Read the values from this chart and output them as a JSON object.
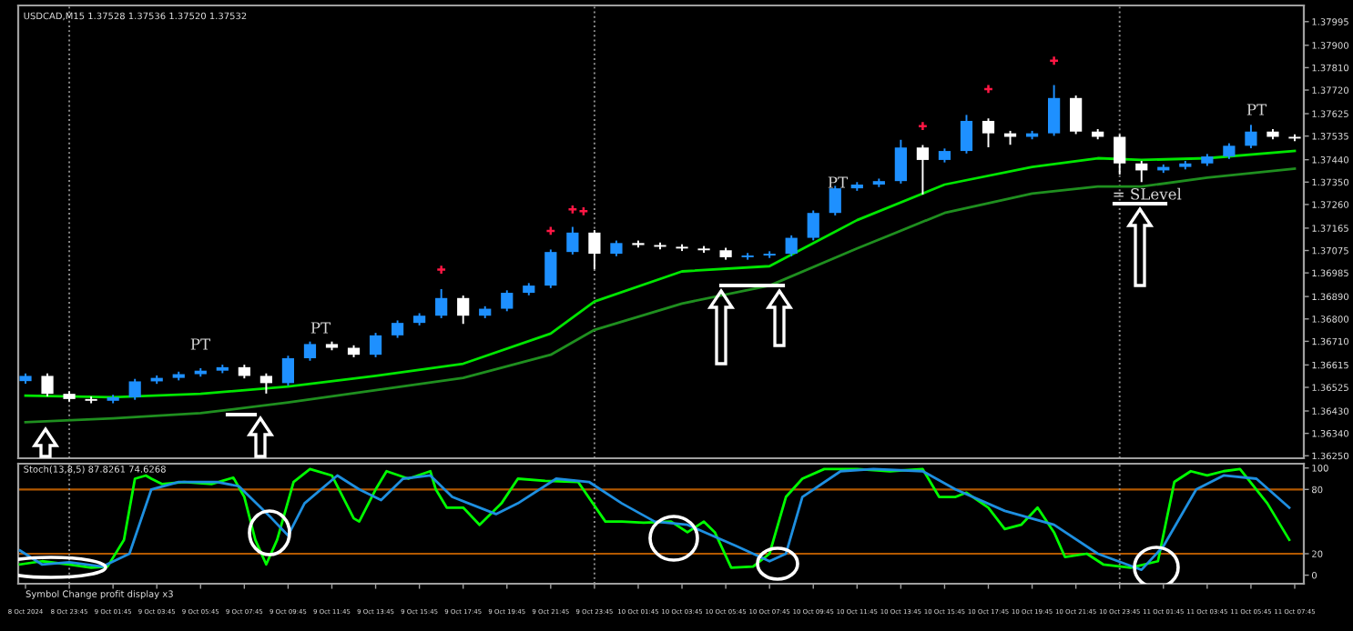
{
  "chart_data": [
    {
      "type": "candlestick",
      "title": "USDCAD,M15 1.37528 1.37536 1.37520 1.37532",
      "tick_labels": "y",
      "x": [
        "2024-10-08T21:45",
        "2024-10-08T22:45",
        "2024-10-08T23:45",
        "2024-10-09T00:45",
        "2024-10-09T01:45",
        "2024-10-09T02:45",
        "2024-10-09T03:45",
        "2024-10-09T04:45",
        "2024-10-09T05:45",
        "2024-10-09T06:45",
        "2024-10-09T07:45",
        "2024-10-09T08:45",
        "2024-10-09T09:45",
        "2024-10-09T10:45",
        "2024-10-09T11:45",
        "2024-10-09T12:45",
        "2024-10-09T13:45",
        "2024-10-09T14:45",
        "2024-10-09T15:45",
        "2024-10-09T16:45",
        "2024-10-09T17:45",
        "2024-10-09T18:45",
        "2024-10-09T19:45",
        "2024-10-09T20:45",
        "2024-10-09T21:45",
        "2024-10-09T22:45",
        "2024-10-09T23:45",
        "2024-10-10T00:45",
        "2024-10-10T01:45",
        "2024-10-10T02:45",
        "2024-10-10T03:45",
        "2024-10-10T04:45",
        "2024-10-10T05:45",
        "2024-10-10T06:45",
        "2024-10-10T07:45",
        "2024-10-10T08:45",
        "2024-10-10T09:45",
        "2024-10-10T10:45",
        "2024-10-10T11:45",
        "2024-10-10T12:45",
        "2024-10-10T13:45",
        "2024-10-10T14:45",
        "2024-10-10T15:45",
        "2024-10-10T16:45",
        "2024-10-10T17:45",
        "2024-10-10T18:45",
        "2024-10-10T19:45",
        "2024-10-10T20:45",
        "2024-10-10T21:45",
        "2024-10-10T22:45",
        "2024-10-10T23:45",
        "2024-10-11T00:45",
        "2024-10-11T01:45",
        "2024-10-11T02:45",
        "2024-10-11T03:45",
        "2024-10-11T04:45",
        "2024-10-11T05:45",
        "2024-10-11T06:45",
        "2024-10-11T07:45"
      ],
      "ohlc": [
        [
          1.3655,
          1.36581,
          1.3654,
          1.36571
        ],
        [
          1.36571,
          1.36581,
          1.36489,
          1.36499
        ],
        [
          1.36499,
          1.36509,
          1.36468,
          1.36478
        ],
        [
          1.36478,
          1.36488,
          1.36461,
          1.36471
        ],
        [
          1.36471,
          1.36495,
          1.36461,
          1.36485
        ],
        [
          1.36485,
          1.36559,
          1.36475,
          1.36549
        ],
        [
          1.36549,
          1.36573,
          1.36539,
          1.36563
        ],
        [
          1.36563,
          1.36588,
          1.36553,
          1.36578
        ],
        [
          1.36578,
          1.36602,
          1.36568,
          1.36592
        ],
        [
          1.36592,
          1.36616,
          1.36582,
          1.36606
        ],
        [
          1.36606,
          1.36616,
          1.36561,
          1.36571
        ],
        [
          1.36571,
          1.36581,
          1.365,
          1.36542
        ],
        [
          1.36542,
          1.36652,
          1.36532,
          1.36642
        ],
        [
          1.36642,
          1.36709,
          1.36632,
          1.36699
        ],
        [
          1.36699,
          1.36709,
          1.36674,
          1.36684
        ],
        [
          1.36684,
          1.36694,
          1.36646,
          1.36656
        ],
        [
          1.36656,
          1.36744,
          1.36646,
          1.36734
        ],
        [
          1.36734,
          1.36794,
          1.36724,
          1.36784
        ],
        [
          1.36784,
          1.36823,
          1.36774,
          1.36813
        ],
        [
          1.36813,
          1.3692,
          1.36803,
          1.36884
        ],
        [
          1.36884,
          1.36894,
          1.3678,
          1.36813
        ],
        [
          1.36813,
          1.36851,
          1.36803,
          1.36841
        ],
        [
          1.36841,
          1.36915,
          1.36831,
          1.36905
        ],
        [
          1.36905,
          1.36944,
          1.36895,
          1.36934
        ],
        [
          1.36934,
          1.37079,
          1.36924,
          1.37069
        ],
        [
          1.37069,
          1.3717,
          1.37059,
          1.37147
        ],
        [
          1.37147,
          1.37157,
          1.37,
          1.37062
        ],
        [
          1.37062,
          1.37115,
          1.37052,
          1.37105
        ],
        [
          1.37105,
          1.37115,
          1.37087,
          1.37097
        ],
        [
          1.37097,
          1.37107,
          1.3708,
          1.3709
        ],
        [
          1.3709,
          1.371,
          1.37073,
          1.37083
        ],
        [
          1.37083,
          1.37093,
          1.37066,
          1.37076
        ],
        [
          1.37076,
          1.37086,
          1.37038,
          1.37048
        ],
        [
          1.37048,
          1.37065,
          1.37038,
          1.37055
        ],
        [
          1.37055,
          1.37072,
          1.37045,
          1.37062
        ],
        [
          1.37062,
          1.37136,
          1.37052,
          1.37126
        ],
        [
          1.37126,
          1.37236,
          1.37116,
          1.37226
        ],
        [
          1.37226,
          1.37335,
          1.37216,
          1.37325
        ],
        [
          1.37325,
          1.3735,
          1.37315,
          1.3734
        ],
        [
          1.3734,
          1.37364,
          1.3733,
          1.37354
        ],
        [
          1.37354,
          1.3752,
          1.37344,
          1.37489
        ],
        [
          1.37489,
          1.37499,
          1.373,
          1.37439
        ],
        [
          1.37439,
          1.37485,
          1.37429,
          1.37475
        ],
        [
          1.37475,
          1.3762,
          1.37465,
          1.37596
        ],
        [
          1.37596,
          1.37606,
          1.3749,
          1.37546
        ],
        [
          1.37546,
          1.37556,
          1.375,
          1.37532
        ],
        [
          1.37532,
          1.37556,
          1.37522,
          1.37546
        ],
        [
          1.37546,
          1.3774,
          1.37536,
          1.37688
        ],
        [
          1.37688,
          1.37698,
          1.37543,
          1.37553
        ],
        [
          1.37553,
          1.37563,
          1.37522,
          1.37532
        ],
        [
          1.37532,
          1.37542,
          1.3738,
          1.37425
        ],
        [
          1.37425,
          1.37435,
          1.3735,
          1.37397
        ],
        [
          1.37397,
          1.37421,
          1.37387,
          1.37411
        ],
        [
          1.37411,
          1.37435,
          1.37401,
          1.37425
        ],
        [
          1.37425,
          1.37463,
          1.37415,
          1.37453
        ],
        [
          1.37453,
          1.37506,
          1.37443,
          1.37496
        ],
        [
          1.37496,
          1.3758,
          1.37486,
          1.37553
        ],
        [
          1.37553,
          1.37563,
          1.37522,
          1.37532
        ],
        [
          1.37532,
          1.37542,
          1.37515,
          1.37525
        ]
      ],
      "colors": [
        "#1e90ff",
        "#ffffff",
        "#ffffff",
        "#ffffff",
        "#1e90ff",
        "#1e90ff",
        "#1e90ff",
        "#1e90ff",
        "#1e90ff",
        "#1e90ff",
        "#ffffff",
        "#ffffff",
        "#1e90ff",
        "#1e90ff",
        "#ffffff",
        "#ffffff",
        "#1e90ff",
        "#1e90ff",
        "#1e90ff",
        "#1e90ff",
        "#ffffff",
        "#1e90ff",
        "#1e90ff",
        "#1e90ff",
        "#1e90ff",
        "#1e90ff",
        "#ffffff",
        "#1e90ff",
        "#ffffff",
        "#ffffff",
        "#ffffff",
        "#ffffff",
        "#ffffff",
        "#1e90ff",
        "#1e90ff",
        "#1e90ff",
        "#1e90ff",
        "#1e90ff",
        "#1e90ff",
        "#1e90ff",
        "#1e90ff",
        "#ffffff",
        "#1e90ff",
        "#1e90ff",
        "#ffffff",
        "#ffffff",
        "#1e90ff",
        "#1e90ff",
        "#ffffff",
        "#ffffff",
        "#ffffff",
        "#ffffff",
        "#1e90ff",
        "#1e90ff",
        "#1e90ff",
        "#1e90ff",
        "#1e90ff",
        "#ffffff",
        "#ffffff"
      ],
      "series": [
        {
          "type": "line",
          "color": "#00e600",
          "x": [
            "2024-10-08T21:45",
            "2024-10-09T01:45",
            "2024-10-09T05:45",
            "2024-10-09T09:45",
            "2024-10-09T13:45",
            "2024-10-09T17:45",
            "2024-10-09T21:45",
            "2024-10-09T23:45",
            "2024-10-10T03:45",
            "2024-10-10T07:45",
            "2024-10-10T11:45",
            "2024-10-10T15:45",
            "2024-10-10T19:45",
            "2024-10-10T22:45",
            "2024-10-11T00:45",
            "2024-10-11T03:45",
            "2024-10-11T07:45"
          ],
          "values": [
            1.36492,
            1.36485,
            1.36499,
            1.36528,
            1.36571,
            1.3662,
            1.36741,
            1.3687,
            1.36991,
            1.37012,
            1.37197,
            1.3734,
            1.37411,
            1.37446,
            1.37439,
            1.37446,
            1.37475
          ]
        },
        {
          "type": "line",
          "color": "#1f8f1f",
          "x": [
            "2024-10-08T21:45",
            "2024-10-09T01:45",
            "2024-10-09T05:45",
            "2024-10-09T09:45",
            "2024-10-09T13:45",
            "2024-10-09T17:45",
            "2024-10-09T21:45",
            "2024-10-09T23:45",
            "2024-10-10T03:45",
            "2024-10-10T07:45",
            "2024-10-10T11:45",
            "2024-10-10T15:45",
            "2024-10-10T19:45",
            "2024-10-10T22:45",
            "2024-10-11T00:45",
            "2024-10-11T03:45",
            "2024-10-11T07:45"
          ],
          "values": [
            1.36385,
            1.364,
            1.36421,
            1.36464,
            1.36514,
            1.36563,
            1.36656,
            1.36756,
            1.36862,
            1.36934,
            1.37083,
            1.37226,
            1.37304,
            1.37332,
            1.37332,
            1.37368,
            1.37404
          ]
        },
        {
          "type": "scatter",
          "color": "#ff1744",
          "marker": "cross",
          "x": [
            "2024-10-09T16:45",
            "2024-10-09T21:45",
            "2024-10-09T22:45",
            "2024-10-09T23:15",
            "2024-10-10T14:45",
            "2024-10-10T17:45",
            "2024-10-10T20:45"
          ],
          "values": [
            1.36998,
            1.37154,
            1.3724,
            1.37233,
            1.37575,
            1.37724,
            1.37838
          ]
        }
      ],
      "annotations": [
        "PT",
        "PT",
        "PT",
        "PT",
        {
          "text": "= SLevel",
          "x": "2024-10-11T01:00",
          "y": 1.37297
        }
      ],
      "ref_lines": [
        {
          "axis": "x",
          "value": "2024-10-08T23:45",
          "color": "#8c8c8c",
          "line_style": "dotted"
        },
        {
          "axis": "x",
          "value": "2024-10-09T23:45",
          "color": "#8c8c8c",
          "line_style": "dotted"
        },
        {
          "axis": "x",
          "value": "2024-10-10T23:45",
          "color": "#8c8c8c",
          "line_style": "dotted"
        }
      ],
      "xlim": [
        "2024-10-08T21:25",
        "2024-10-11T08:10"
      ],
      "ylim": [
        1.3624,
        1.3806
      ],
      "yticks": [
        {
          "value": 1.3625,
          "label": "1.36250"
        },
        {
          "value": 1.3634,
          "label": "1.36340"
        },
        {
          "value": 1.3643,
          "label": "1.36430"
        },
        {
          "value": 1.36525,
          "label": "1.36525"
        },
        {
          "value": 1.36615,
          "label": "1.36615"
        },
        {
          "value": 1.3671,
          "label": "1.36710"
        },
        {
          "value": 1.368,
          "label": "1.36800"
        },
        {
          "value": 1.3689,
          "label": "1.36890"
        },
        {
          "value": 1.36985,
          "label": "1.36985"
        },
        {
          "value": 1.37075,
          "label": "1.37075"
        },
        {
          "value": 1.37165,
          "label": "1.37165"
        },
        {
          "value": 1.3726,
          "label": "1.37260"
        },
        {
          "value": 1.3735,
          "label": "1.37350"
        },
        {
          "value": 1.3744,
          "label": "1.37440"
        },
        {
          "value": 1.37535,
          "label": "1.37535"
        },
        {
          "value": 1.37625,
          "label": "1.37625"
        },
        {
          "value": 1.3772,
          "label": "1.37720"
        },
        {
          "value": 1.3781,
          "label": "1.37810"
        },
        {
          "value": 1.379,
          "label": "1.37900"
        },
        {
          "value": 1.37995,
          "label": "1.37995"
        }
      ]
    },
    {
      "type": "line",
      "title": "Stoch(13,8,5) 87.8261 74.6268",
      "series": [
        {
          "color": "#00ff00",
          "x": [
            "2024-10-08T21:30",
            "2024-10-08T22:30",
            "2024-10-08T23:45",
            "2024-10-09T00:45",
            "2024-10-09T01:30",
            "2024-10-09T02:15",
            "2024-10-09T02:45",
            "2024-10-09T03:15",
            "2024-10-09T03:30",
            "2024-10-09T04:00",
            "2024-10-09T05:00",
            "2024-10-09T06:15",
            "2024-10-09T07:15",
            "2024-10-09T07:45",
            "2024-10-09T08:15",
            "2024-10-09T08:45",
            "2024-10-09T09:15",
            "2024-10-09T10:00",
            "2024-10-09T10:45",
            "2024-10-09T11:45",
            "2024-10-09T12:45",
            "2024-10-09T13:00",
            "2024-10-09T13:45",
            "2024-10-09T14:15",
            "2024-10-09T15:15",
            "2024-10-09T16:15",
            "2024-10-09T16:30",
            "2024-10-09T17:00",
            "2024-10-09T17:45",
            "2024-10-09T18:30",
            "2024-10-09T19:30",
            "2024-10-09T20:15",
            "2024-10-09T21:30",
            "2024-10-09T23:00",
            "2024-10-10T00:15",
            "2024-10-10T01:00",
            "2024-10-10T02:00",
            "2024-10-10T03:15",
            "2024-10-10T04:00",
            "2024-10-10T04:45",
            "2024-10-10T05:15",
            "2024-10-10T06:00",
            "2024-10-10T07:00",
            "2024-10-10T07:45",
            "2024-10-10T08:30",
            "2024-10-10T09:15",
            "2024-10-10T10:15",
            "2024-10-10T11:45",
            "2024-10-10T13:15",
            "2024-10-10T14:45",
            "2024-10-10T15:30",
            "2024-10-10T16:15",
            "2024-10-10T16:45",
            "2024-10-10T17:45",
            "2024-10-10T18:30",
            "2024-10-10T19:15",
            "2024-10-10T20:00",
            "2024-10-10T20:45",
            "2024-10-10T21:15",
            "2024-10-10T22:15",
            "2024-10-10T23:00",
            "2024-10-11T00:15",
            "2024-10-11T01:30",
            "2024-10-11T02:15",
            "2024-10-11T03:00",
            "2024-10-11T03:45",
            "2024-10-11T04:30",
            "2024-10-11T05:15",
            "2024-10-11T06:30",
            "2024-10-11T07:30"
          ],
          "values": [
            10,
            13,
            10,
            7,
            8,
            33,
            90,
            93,
            90,
            85,
            87,
            85,
            91,
            73,
            33,
            10,
            33,
            87,
            99,
            93,
            53,
            50,
            80,
            97,
            90,
            97,
            80,
            63,
            63,
            47,
            67,
            90,
            88,
            87,
            50,
            50,
            49,
            50,
            40,
            50,
            40,
            7,
            8,
            20,
            73,
            90,
            99,
            99,
            97,
            99,
            73,
            73,
            77,
            63,
            43,
            47,
            63,
            40,
            17,
            20,
            10,
            7,
            13,
            87,
            97,
            93,
            97,
            99,
            67,
            33
          ]
        },
        {
          "color": "#1e8fe0",
          "x": [
            "2024-10-08T21:30",
            "2024-10-08T22:30",
            "2024-10-08T23:45",
            "2024-10-09T01:15",
            "2024-10-09T02:30",
            "2024-10-09T03:30",
            "2024-10-09T04:45",
            "2024-10-09T06:30",
            "2024-10-09T07:30",
            "2024-10-09T09:00",
            "2024-10-09T09:45",
            "2024-10-09T10:30",
            "2024-10-09T12:00",
            "2024-10-09T13:00",
            "2024-10-09T14:00",
            "2024-10-09T15:00",
            "2024-10-09T16:15",
            "2024-10-09T17:15",
            "2024-10-09T19:15",
            "2024-10-09T20:15",
            "2024-10-09T22:00",
            "2024-10-09T23:30",
            "2024-10-10T01:00",
            "2024-10-10T02:30",
            "2024-10-10T04:00",
            "2024-10-10T06:15",
            "2024-10-10T07:45",
            "2024-10-10T08:30",
            "2024-10-10T09:15",
            "2024-10-10T11:00",
            "2024-10-10T12:30",
            "2024-10-10T14:45",
            "2024-10-10T16:15",
            "2024-10-10T18:30",
            "2024-10-10T20:45",
            "2024-10-10T22:45",
            "2024-10-11T00:45",
            "2024-10-11T01:45",
            "2024-10-11T03:15",
            "2024-10-11T04:30",
            "2024-10-11T06:00",
            "2024-10-11T07:30"
          ],
          "values": [
            23,
            10,
            12,
            8,
            20,
            80,
            87,
            87,
            83,
            53,
            37,
            67,
            93,
            80,
            70,
            90,
            93,
            73,
            57,
            67,
            90,
            87,
            67,
            50,
            47,
            27,
            13,
            20,
            73,
            97,
            99,
            97,
            80,
            60,
            47,
            20,
            5,
            27,
            80,
            93,
            90,
            63
          ]
        }
      ],
      "annotations": [
        "Symbol Change profit display x3"
      ],
      "ref_lines": [
        {
          "axis": "y",
          "value": 80,
          "color": "#b35900",
          "line_style": "solid"
        },
        {
          "axis": "y",
          "value": 20,
          "color": "#b35900",
          "line_style": "solid"
        },
        {
          "axis": "x",
          "value": "2024-10-08T23:45",
          "color": "#8c8c8c",
          "line_style": "dotted"
        },
        {
          "axis": "x",
          "value": "2024-10-09T23:45",
          "color": "#8c8c8c",
          "line_style": "dotted"
        },
        {
          "axis": "x",
          "value": "2024-10-10T23:45",
          "color": "#8c8c8c",
          "line_style": "dotted"
        }
      ],
      "xlim": [
        "2024-10-08T21:25",
        "2024-10-11T08:10"
      ],
      "xticks": [
        {
          "value": "2024-10-08T21:45",
          "label": "8 Oct 2024"
        },
        {
          "value": "2024-10-08T23:45",
          "label": "8 Oct 23:45"
        },
        {
          "value": "2024-10-09T01:45",
          "label": "9 Oct 01:45"
        },
        {
          "value": "2024-10-09T03:45",
          "label": "9 Oct 03:45"
        },
        {
          "value": "2024-10-09T05:45",
          "label": "9 Oct 05:45"
        },
        {
          "value": "2024-10-09T07:45",
          "label": "9 Oct 07:45"
        },
        {
          "value": "2024-10-09T09:45",
          "label": "9 Oct 09:45"
        },
        {
          "value": "2024-10-09T11:45",
          "label": "9 Oct 11:45"
        },
        {
          "value": "2024-10-09T13:45",
          "label": "9 Oct 13:45"
        },
        {
          "value": "2024-10-09T15:45",
          "label": "9 Oct 15:45"
        },
        {
          "value": "2024-10-09T17:45",
          "label": "9 Oct 17:45"
        },
        {
          "value": "2024-10-09T19:45",
          "label": "9 Oct 19:45"
        },
        {
          "value": "2024-10-09T21:45",
          "label": "9 Oct 21:45"
        },
        {
          "value": "2024-10-09T23:45",
          "label": "9 Oct 23:45"
        },
        {
          "value": "2024-10-10T01:45",
          "label": "10 Oct 01:45"
        },
        {
          "value": "2024-10-10T03:45",
          "label": "10 Oct 03:45"
        },
        {
          "value": "2024-10-10T05:45",
          "label": "10 Oct 05:45"
        },
        {
          "value": "2024-10-10T07:45",
          "label": "10 Oct 07:45"
        },
        {
          "value": "2024-10-10T09:45",
          "label": "10 Oct 09:45"
        },
        {
          "value": "2024-10-10T11:45",
          "label": "10 Oct 11:45"
        },
        {
          "value": "2024-10-10T13:45",
          "label": "10 Oct 13:45"
        },
        {
          "value": "2024-10-10T15:45",
          "label": "10 Oct 15:45"
        },
        {
          "value": "2024-10-10T17:45",
          "label": "10 Oct 17:45"
        },
        {
          "value": "2024-10-10T19:45",
          "label": "10 Oct 19:45"
        },
        {
          "value": "2024-10-10T21:45",
          "label": "10 Oct 21:45"
        },
        {
          "value": "2024-10-10T23:45",
          "label": "10 Oct 23:45"
        },
        {
          "value": "2024-10-11T01:45",
          "label": "11 Oct 01:45"
        },
        {
          "value": "2024-10-11T03:45",
          "label": "11 Oct 03:45"
        },
        {
          "value": "2024-10-11T05:45",
          "label": "11 Oct 05:45"
        },
        {
          "value": "2024-10-11T07:45",
          "label": "11 Oct 07:45"
        }
      ],
      "ylim": [
        -8,
        104
      ],
      "yticks": [
        0,
        20,
        80,
        100
      ]
    }
  ]
}
